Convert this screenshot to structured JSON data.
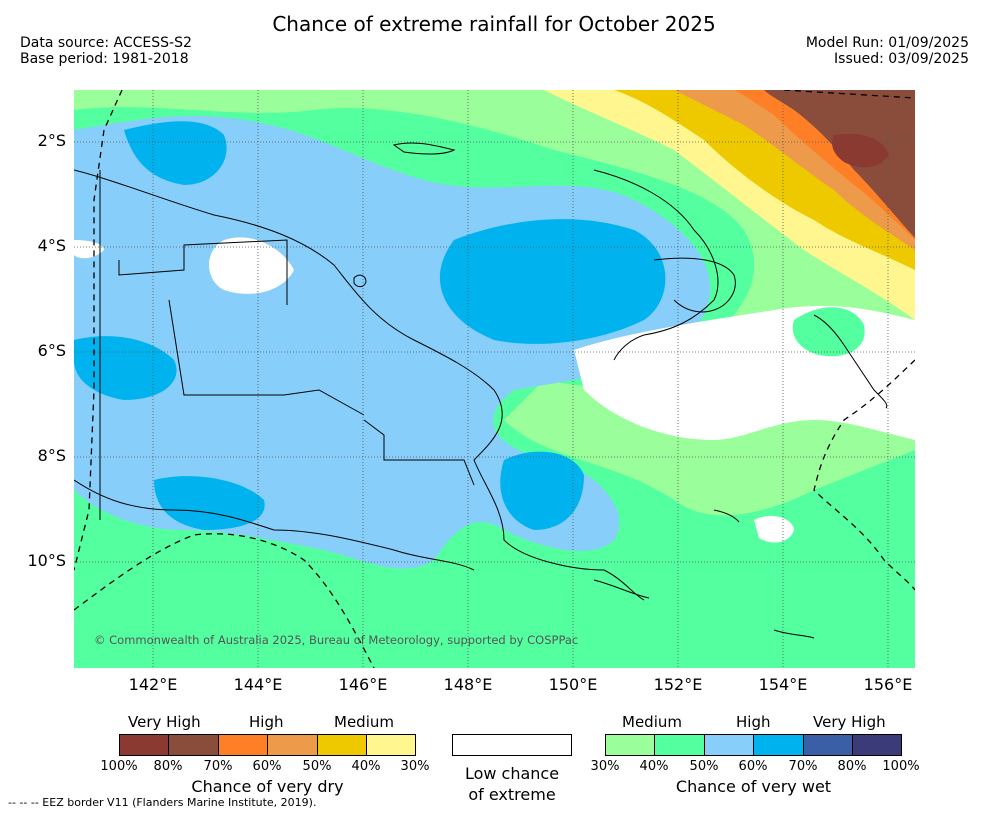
{
  "header": {
    "title": "Chance of extreme rainfall for October 2025",
    "data_source": "Data source: ACCESS-S2",
    "base_period": "Base period: 1981-2018",
    "model_run": "Model Run: 01/09/2025",
    "issued": "Issued: 03/09/2025"
  },
  "map": {
    "lat_labels": [
      "2°S",
      "4°S",
      "6°S",
      "8°S",
      "10°S"
    ],
    "lon_labels": [
      "142°E",
      "144°E",
      "146°E",
      "148°E",
      "150°E",
      "152°E",
      "154°E",
      "156°E"
    ],
    "copyright": "© Commonwealth of Australia 2025, Bureau of Meteorology, supported by COSPPac"
  },
  "legend": {
    "dry": {
      "levels": [
        "Very High",
        "High",
        "Medium"
      ],
      "ticks": [
        "100%",
        "80%",
        "70%",
        "60%",
        "50%",
        "40%",
        "30%"
      ],
      "colors": [
        "#8b3a32",
        "#8b4d3b",
        "#ff7f27",
        "#ed9b4a",
        "#eec900",
        "#fff68f"
      ],
      "caption": "Chance of very dry"
    },
    "low": {
      "caption_line1": "Low chance",
      "caption_line2": "of extreme"
    },
    "wet": {
      "levels": [
        "Medium",
        "High",
        "Very High"
      ],
      "ticks": [
        "30%",
        "40%",
        "50%",
        "60%",
        "70%",
        "80%",
        "100%"
      ],
      "colors": [
        "#9aff9a",
        "#54ff9f",
        "#87cefa",
        "#00b2ee",
        "#3a5fa6",
        "#3b3b7a"
      ],
      "caption": "Chance of very wet"
    }
  },
  "footnote": "-- -- -- EEZ border V11 (Flanders Marine Institute, 2019)."
}
